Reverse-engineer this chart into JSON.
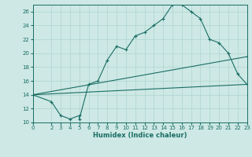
{
  "xlabel": "Humidex (Indice chaleur)",
  "bg_color": "#cde8e5",
  "line_color": "#1a6e64",
  "grid_color": "#aed4cf",
  "xlim": [
    0,
    23
  ],
  "ylim": [
    10,
    27
  ],
  "xticks": [
    0,
    2,
    3,
    4,
    5,
    6,
    7,
    8,
    9,
    10,
    11,
    12,
    13,
    14,
    15,
    16,
    17,
    18,
    19,
    20,
    21,
    22,
    23
  ],
  "yticks": [
    10,
    12,
    14,
    16,
    18,
    20,
    22,
    24,
    26
  ],
  "line1_x": [
    0,
    2,
    3,
    4,
    5,
    5,
    6,
    7,
    8,
    9,
    10,
    11,
    12,
    13,
    14,
    15,
    16,
    17,
    18,
    19,
    20,
    21,
    22,
    23
  ],
  "line1_y": [
    14,
    13,
    11,
    10.5,
    11,
    10.5,
    15.5,
    16,
    19,
    21,
    20.5,
    22.5,
    23,
    24,
    25,
    27,
    27,
    26,
    25,
    22,
    21.5,
    20,
    17,
    15.5
  ],
  "line2_x": [
    0,
    23
  ],
  "line2_y": [
    14,
    19.5
  ],
  "line3_x": [
    0,
    23
  ],
  "line3_y": [
    14,
    15.5
  ]
}
